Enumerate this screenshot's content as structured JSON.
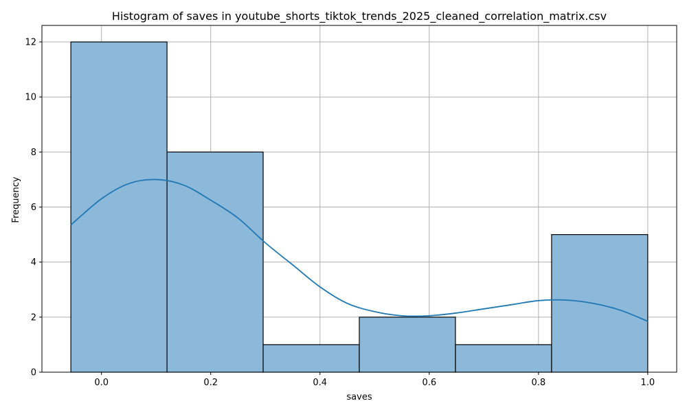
{
  "chart_data": {
    "type": "bar",
    "title": "Histogram of saves in youtube_shorts_tiktok_trends_2025_cleaned_correlation_matrix.csv",
    "xlabel": "saves",
    "ylabel": "Frequency",
    "xlim": [
      -0.109,
      1.053
    ],
    "ylim": [
      0,
      12.6
    ],
    "xticks": [
      0.0,
      0.2,
      0.4,
      0.6,
      0.8,
      1.0
    ],
    "xtick_labels": [
      "0.0",
      "0.2",
      "0.4",
      "0.6",
      "0.8",
      "1.0"
    ],
    "yticks": [
      0,
      2,
      4,
      6,
      8,
      10,
      12
    ],
    "ytick_labels": [
      "0",
      "2",
      "4",
      "6",
      "8",
      "10",
      "12"
    ],
    "bins": [
      {
        "x0": -0.056,
        "x1": 0.12,
        "count": 12
      },
      {
        "x0": 0.12,
        "x1": 0.296,
        "count": 8
      },
      {
        "x0": 0.296,
        "x1": 0.472,
        "count": 1
      },
      {
        "x0": 0.472,
        "x1": 0.648,
        "count": 2
      },
      {
        "x0": 0.648,
        "x1": 0.824,
        "count": 1
      },
      {
        "x0": 0.824,
        "x1": 1.0,
        "count": 5
      }
    ],
    "kde": {
      "x": [
        -0.056,
        0.0,
        0.05,
        0.1,
        0.15,
        0.2,
        0.25,
        0.3,
        0.35,
        0.4,
        0.45,
        0.5,
        0.55,
        0.6,
        0.65,
        0.7,
        0.75,
        0.8,
        0.85,
        0.9,
        0.95,
        1.0
      ],
      "y": [
        5.35,
        6.3,
        6.85,
        7.0,
        6.8,
        6.25,
        5.6,
        4.7,
        3.9,
        3.1,
        2.5,
        2.2,
        2.05,
        2.05,
        2.15,
        2.3,
        2.45,
        2.6,
        2.62,
        2.5,
        2.25,
        1.85
      ]
    },
    "grid": true,
    "colors": {
      "bar_fill": "#8cb8d9",
      "bar_edge": "#000000",
      "kde_line": "#1f77b4",
      "grid": "#b0b0b0"
    }
  }
}
